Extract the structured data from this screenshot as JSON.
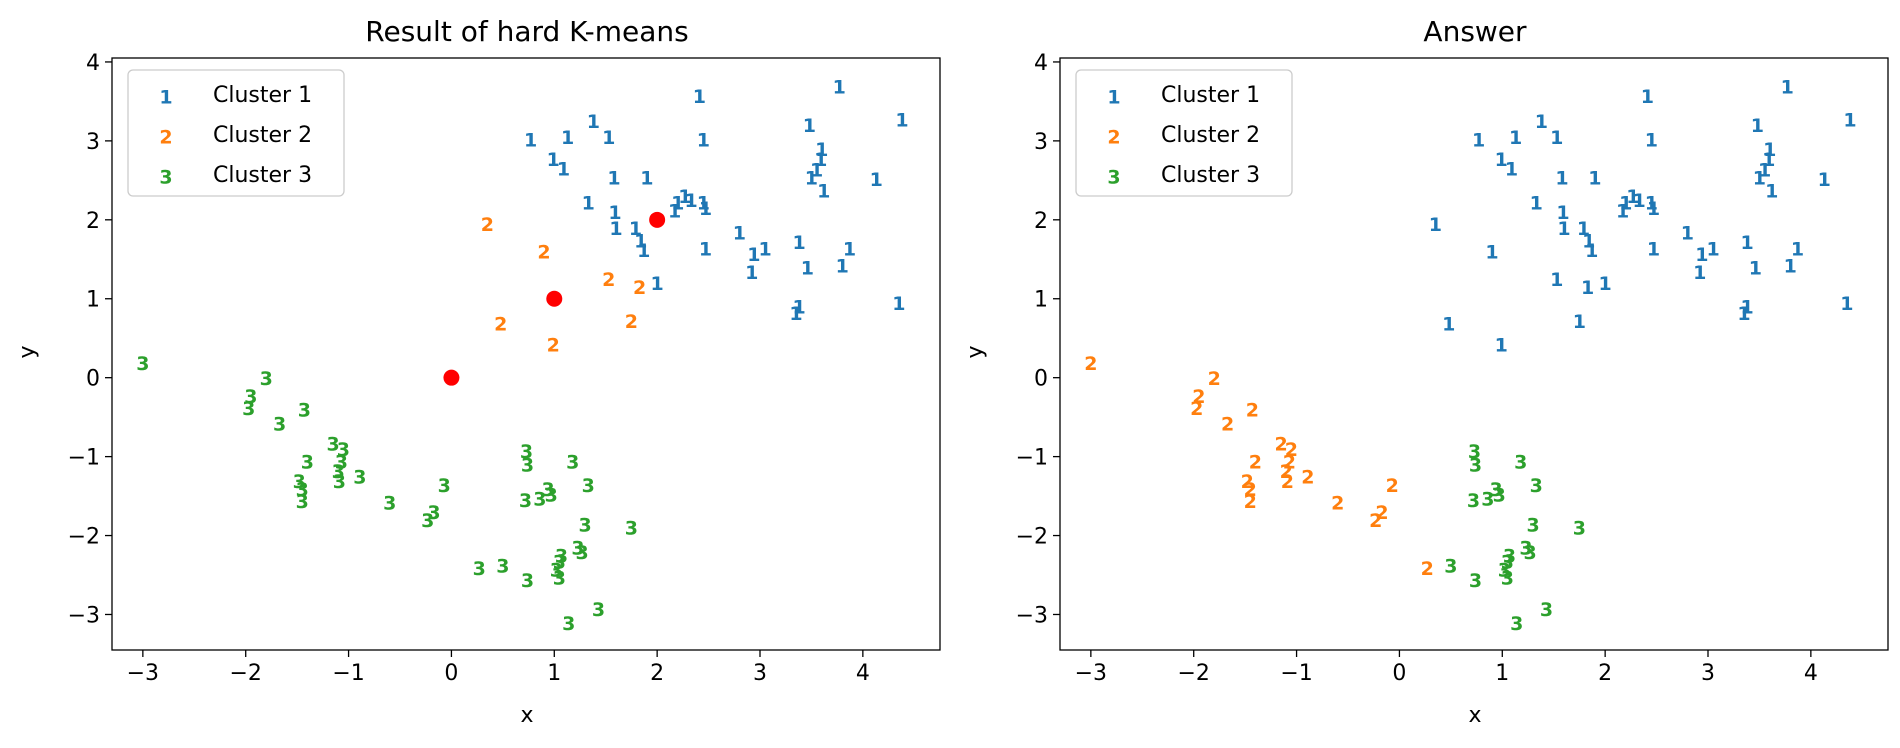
{
  "chart_data": [
    {
      "type": "scatter",
      "title": "Result of hard K-means",
      "xlabel": "x",
      "ylabel": "y",
      "xlim": [
        -3.3,
        4.75
      ],
      "ylim": [
        -3.45,
        4.05
      ],
      "xticks": [
        -3,
        -2,
        -1,
        0,
        1,
        2,
        3,
        4
      ],
      "yticks": [
        -3,
        -2,
        -1,
        0,
        1,
        2,
        3,
        4
      ],
      "legend": {
        "placement": "upper-left",
        "entries": [
          "Cluster 1",
          "Cluster 2",
          "Cluster 3"
        ]
      },
      "series": [
        {
          "name": "Cluster 1",
          "marker": "1",
          "color": "#1f77b4",
          "points": [
            [
              0.77,
              3.0
            ],
            [
              0.99,
              2.75
            ],
            [
              1.13,
              3.03
            ],
            [
              1.09,
              2.63
            ],
            [
              1.38,
              3.23
            ],
            [
              1.53,
              3.03
            ],
            [
              2.41,
              3.55
            ],
            [
              2.45,
              3.0
            ],
            [
              1.33,
              2.2
            ],
            [
              1.58,
              2.52
            ],
            [
              1.59,
              2.08
            ],
            [
              1.6,
              1.88
            ],
            [
              1.9,
              2.52
            ],
            [
              1.79,
              1.88
            ],
            [
              1.84,
              1.72
            ],
            [
              1.87,
              1.6
            ],
            [
              2.17,
              2.1
            ],
            [
              2.2,
              2.2
            ],
            [
              2.27,
              2.28
            ],
            [
              2.33,
              2.23
            ],
            [
              2.45,
              2.2
            ],
            [
              2.47,
              2.13
            ],
            [
              2.47,
              1.62
            ],
            [
              2.0,
              1.18
            ],
            [
              2.8,
              1.82
            ],
            [
              2.92,
              1.32
            ],
            [
              2.94,
              1.55
            ],
            [
              3.05,
              1.62
            ],
            [
              3.38,
              1.7
            ],
            [
              3.46,
              1.38
            ],
            [
              3.35,
              0.8
            ],
            [
              3.38,
              0.88
            ],
            [
              3.5,
              2.52
            ],
            [
              3.55,
              2.62
            ],
            [
              3.59,
              2.75
            ],
            [
              3.6,
              2.88
            ],
            [
              3.62,
              2.35
            ],
            [
              3.48,
              3.18
            ],
            [
              3.77,
              3.67
            ],
            [
              3.8,
              1.4
            ],
            [
              3.87,
              1.62
            ],
            [
              4.13,
              2.5
            ],
            [
              4.35,
              0.93
            ],
            [
              4.38,
              3.25
            ]
          ]
        },
        {
          "name": "Cluster 2",
          "marker": "2",
          "color": "#ff7f0e",
          "points": [
            [
              0.35,
              1.93
            ],
            [
              0.48,
              0.67
            ],
            [
              0.9,
              1.58
            ],
            [
              0.99,
              0.4
            ],
            [
              1.53,
              1.23
            ],
            [
              1.83,
              1.13
            ],
            [
              1.75,
              0.7
            ]
          ]
        },
        {
          "name": "Cluster 3",
          "marker": "3",
          "color": "#2ca02c",
          "points": [
            [
              -3.0,
              0.17
            ],
            [
              -1.8,
              -0.02
            ],
            [
              -1.95,
              -0.25
            ],
            [
              -1.97,
              -0.4
            ],
            [
              -1.67,
              -0.6
            ],
            [
              -1.43,
              -0.42
            ],
            [
              -1.15,
              -0.85
            ],
            [
              -1.05,
              -0.92
            ],
            [
              -1.07,
              -1.08
            ],
            [
              -1.1,
              -1.2
            ],
            [
              -1.09,
              -1.33
            ],
            [
              -0.89,
              -1.27
            ],
            [
              -1.4,
              -1.08
            ],
            [
              -1.48,
              -1.33
            ],
            [
              -1.45,
              -1.43
            ],
            [
              -1.45,
              -1.58
            ],
            [
              -0.6,
              -1.6
            ],
            [
              -0.17,
              -1.72
            ],
            [
              -0.23,
              -1.82
            ],
            [
              -0.07,
              -1.38
            ],
            [
              0.27,
              -2.43
            ],
            [
              0.5,
              -2.4
            ],
            [
              0.73,
              -0.95
            ],
            [
              0.74,
              -1.12
            ],
            [
              0.72,
              -1.57
            ],
            [
              0.86,
              -1.55
            ],
            [
              0.94,
              -1.43
            ],
            [
              0.97,
              -1.5
            ],
            [
              1.18,
              -1.08
            ],
            [
              1.33,
              -1.38
            ],
            [
              1.3,
              -1.88
            ],
            [
              1.23,
              -2.17
            ],
            [
              1.27,
              -2.23
            ],
            [
              1.07,
              -2.27
            ],
            [
              1.05,
              -2.35
            ],
            [
              1.02,
              -2.45
            ],
            [
              1.05,
              -2.55
            ],
            [
              0.74,
              -2.58
            ],
            [
              1.75,
              -1.92
            ],
            [
              1.43,
              -2.95
            ],
            [
              1.14,
              -3.13
            ]
          ]
        }
      ],
      "centroids": {
        "color": "#ff0000",
        "points": [
          [
            0,
            0
          ],
          [
            1,
            1
          ],
          [
            2,
            2
          ]
        ]
      }
    },
    {
      "type": "scatter",
      "title": "Answer",
      "xlabel": "x",
      "ylabel": "y",
      "xlim": [
        -3.3,
        4.75
      ],
      "ylim": [
        -3.45,
        4.05
      ],
      "xticks": [
        -3,
        -2,
        -1,
        0,
        1,
        2,
        3,
        4
      ],
      "yticks": [
        -3,
        -2,
        -1,
        0,
        1,
        2,
        3,
        4
      ],
      "legend": {
        "placement": "upper-left",
        "entries": [
          "Cluster 1",
          "Cluster 2",
          "Cluster 3"
        ]
      },
      "series": [
        {
          "name": "Cluster 1",
          "marker": "1",
          "color": "#1f77b4",
          "points": [
            [
              0.77,
              3.0
            ],
            [
              0.99,
              2.75
            ],
            [
              1.13,
              3.03
            ],
            [
              1.09,
              2.63
            ],
            [
              1.38,
              3.23
            ],
            [
              1.53,
              3.03
            ],
            [
              2.41,
              3.55
            ],
            [
              2.45,
              3.0
            ],
            [
              1.33,
              2.2
            ],
            [
              1.58,
              2.52
            ],
            [
              1.59,
              2.08
            ],
            [
              1.6,
              1.88
            ],
            [
              1.9,
              2.52
            ],
            [
              1.79,
              1.88
            ],
            [
              1.84,
              1.72
            ],
            [
              1.87,
              1.6
            ],
            [
              2.17,
              2.1
            ],
            [
              2.2,
              2.2
            ],
            [
              2.27,
              2.28
            ],
            [
              2.33,
              2.23
            ],
            [
              2.45,
              2.2
            ],
            [
              2.47,
              2.13
            ],
            [
              2.47,
              1.62
            ],
            [
              2.0,
              1.18
            ],
            [
              2.8,
              1.82
            ],
            [
              2.92,
              1.32
            ],
            [
              2.94,
              1.55
            ],
            [
              3.05,
              1.62
            ],
            [
              3.38,
              1.7
            ],
            [
              3.46,
              1.38
            ],
            [
              3.35,
              0.8
            ],
            [
              3.38,
              0.88
            ],
            [
              3.5,
              2.52
            ],
            [
              3.55,
              2.62
            ],
            [
              3.59,
              2.75
            ],
            [
              3.6,
              2.88
            ],
            [
              3.62,
              2.35
            ],
            [
              3.48,
              3.18
            ],
            [
              3.77,
              3.67
            ],
            [
              3.8,
              1.4
            ],
            [
              3.87,
              1.62
            ],
            [
              4.13,
              2.5
            ],
            [
              4.35,
              0.93
            ],
            [
              4.38,
              3.25
            ],
            [
              0.35,
              1.93
            ],
            [
              0.48,
              0.67
            ],
            [
              0.9,
              1.58
            ],
            [
              0.99,
              0.4
            ],
            [
              1.53,
              1.23
            ],
            [
              1.83,
              1.13
            ],
            [
              1.75,
              0.7
            ]
          ]
        },
        {
          "name": "Cluster 2",
          "marker": "2",
          "color": "#ff7f0e",
          "points": [
            [
              -3.0,
              0.17
            ],
            [
              -1.8,
              -0.02
            ],
            [
              -1.95,
              -0.25
            ],
            [
              -1.97,
              -0.4
            ],
            [
              -1.67,
              -0.6
            ],
            [
              -1.43,
              -0.42
            ],
            [
              -1.15,
              -0.85
            ],
            [
              -1.05,
              -0.92
            ],
            [
              -1.07,
              -1.08
            ],
            [
              -1.1,
              -1.2
            ],
            [
              -1.09,
              -1.33
            ],
            [
              -0.89,
              -1.27
            ],
            [
              -1.4,
              -1.08
            ],
            [
              -1.48,
              -1.33
            ],
            [
              -1.45,
              -1.43
            ],
            [
              -1.45,
              -1.58
            ],
            [
              -0.6,
              -1.6
            ],
            [
              -0.17,
              -1.72
            ],
            [
              -0.23,
              -1.82
            ],
            [
              -0.07,
              -1.38
            ],
            [
              0.27,
              -2.43
            ]
          ]
        },
        {
          "name": "Cluster 3",
          "marker": "3",
          "color": "#2ca02c",
          "points": [
            [
              0.5,
              -2.4
            ],
            [
              0.73,
              -0.95
            ],
            [
              0.74,
              -1.12
            ],
            [
              0.72,
              -1.57
            ],
            [
              0.86,
              -1.55
            ],
            [
              0.94,
              -1.43
            ],
            [
              0.97,
              -1.5
            ],
            [
              1.18,
              -1.08
            ],
            [
              1.33,
              -1.38
            ],
            [
              1.3,
              -1.88
            ],
            [
              1.23,
              -2.17
            ],
            [
              1.27,
              -2.23
            ],
            [
              1.07,
              -2.27
            ],
            [
              1.05,
              -2.35
            ],
            [
              1.02,
              -2.45
            ],
            [
              1.05,
              -2.55
            ],
            [
              0.74,
              -2.58
            ],
            [
              1.75,
              -1.92
            ],
            [
              1.43,
              -2.95
            ],
            [
              1.14,
              -3.13
            ]
          ]
        }
      ]
    }
  ]
}
